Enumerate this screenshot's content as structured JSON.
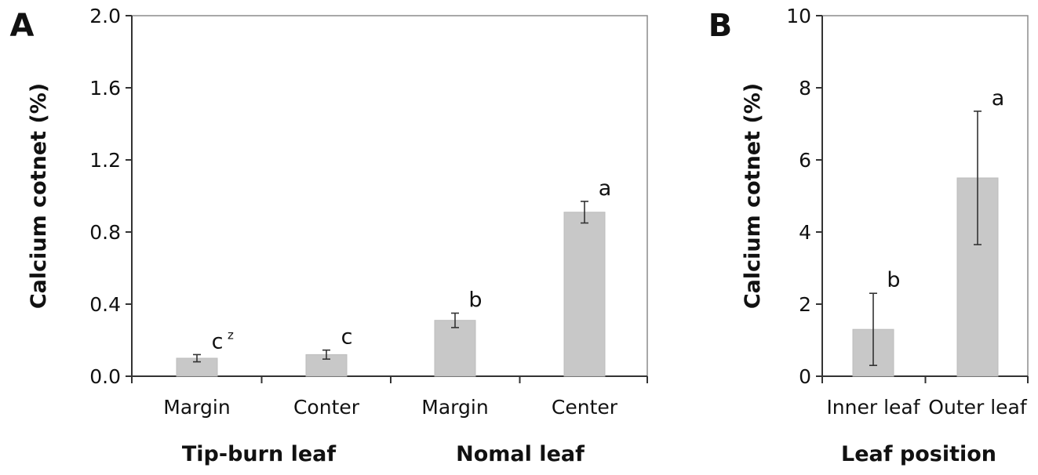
{
  "chart_data": [
    {
      "panel": "A",
      "type": "bar",
      "ylabel": "Calcium cotnet (%)",
      "ylim": [
        0,
        2.0
      ],
      "yticks": [
        "0.0",
        "0.4",
        "0.8",
        "1.2",
        "1.6",
        "2.0"
      ],
      "categories": [
        "Margin",
        "Conter",
        "Margin",
        "Center"
      ],
      "groups": [
        {
          "label": "Tip-burn leaf"
        },
        {
          "label": "Nomal leaf"
        }
      ],
      "values": [
        0.1,
        0.12,
        0.31,
        0.91
      ],
      "errors": [
        0.02,
        0.025,
        0.04,
        0.06
      ],
      "significance": [
        {
          "letter": "c",
          "sup": "z"
        },
        {
          "letter": "c",
          "sup": ""
        },
        {
          "letter": "b",
          "sup": ""
        },
        {
          "letter": "a",
          "sup": ""
        }
      ],
      "bar_color": "#c8c8c8"
    },
    {
      "panel": "B",
      "type": "bar",
      "ylabel": "Calcium cotnet (%)",
      "xlabel": "Leaf position",
      "ylim": [
        0,
        10
      ],
      "yticks": [
        "0",
        "2",
        "4",
        "6",
        "8",
        "10"
      ],
      "categories": [
        "Inner leaf",
        "Outer leaf"
      ],
      "values": [
        1.3,
        5.5
      ],
      "errors": [
        1.0,
        1.85
      ],
      "significance": [
        {
          "letter": "b",
          "sup": ""
        },
        {
          "letter": "a",
          "sup": ""
        }
      ],
      "bar_color": "#c8c8c8"
    }
  ]
}
